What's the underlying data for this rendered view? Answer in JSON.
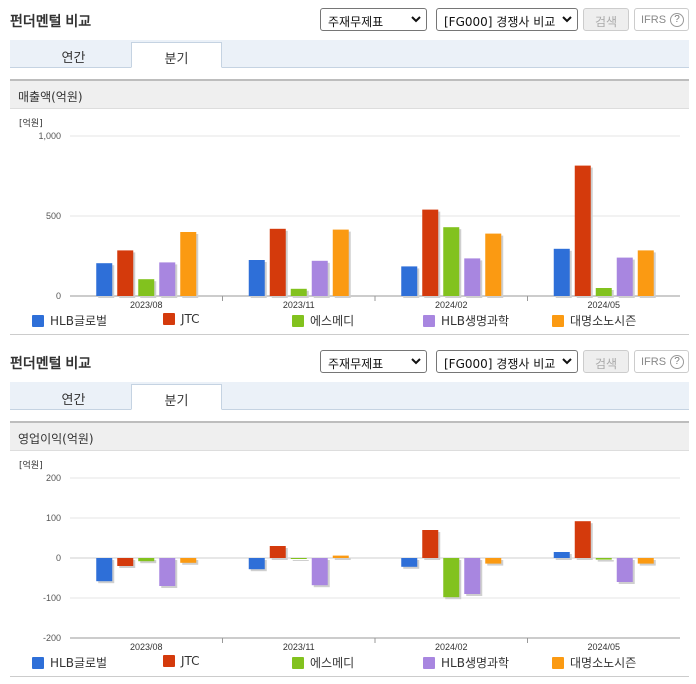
{
  "panels": [
    {
      "title": "펀더멘털 비교",
      "select_statement": "주재무제표",
      "select_peer": "[FG000] 경쟁사 비교",
      "search_label": "검색",
      "ifrs_label": "IFRS",
      "ifrs_help": "?",
      "tabs": [
        {
          "label": "연간",
          "active": false
        },
        {
          "label": "분기",
          "active": true
        }
      ],
      "section_label": "매출액(억원)",
      "chart_data": {
        "type": "bar",
        "unit_label": "[억원]",
        "categories": [
          "2023/08",
          "2023/11",
          "2024/02",
          "2024/05"
        ],
        "ylim": [
          0,
          1000
        ],
        "yticks": [
          0,
          500,
          1000
        ],
        "ytick_labels": [
          "0",
          "500",
          "1,000"
        ],
        "grid": true,
        "legend_position": "bottom",
        "series": [
          {
            "name": "HLB글로벌",
            "color": "#2e6fd8",
            "values": [
              205,
              225,
              185,
              295
            ]
          },
          {
            "name": "JTC",
            "color": "#d43a0c",
            "values": [
              285,
              420,
              540,
              815
            ]
          },
          {
            "name": "에스메디",
            "color": "#82c21e",
            "values": [
              105,
              45,
              430,
              50
            ]
          },
          {
            "name": "HLB생명과학",
            "color": "#a886e0",
            "values": [
              210,
              220,
              235,
              240
            ]
          },
          {
            "name": "대명소노시즌",
            "color": "#fb9a12",
            "values": [
              400,
              415,
              390,
              285
            ]
          }
        ]
      }
    },
    {
      "title": "펀더멘털 비교",
      "select_statement": "주재무제표",
      "select_peer": "[FG000] 경쟁사 비교",
      "search_label": "검색",
      "ifrs_label": "IFRS",
      "ifrs_help": "?",
      "tabs": [
        {
          "label": "연간",
          "active": false
        },
        {
          "label": "분기",
          "active": true
        }
      ],
      "section_label": "영업이익(억원)",
      "chart_data": {
        "type": "bar",
        "unit_label": "[억원]",
        "categories": [
          "2023/08",
          "2023/11",
          "2024/02",
          "2024/05"
        ],
        "ylim": [
          -200,
          200
        ],
        "yticks": [
          -200,
          -100,
          0,
          100,
          200
        ],
        "ytick_labels": [
          "-200",
          "-100",
          "0",
          "100",
          "200"
        ],
        "grid": true,
        "legend_position": "bottom",
        "series": [
          {
            "name": "HLB글로벌",
            "color": "#2e6fd8",
            "values": [
              -58,
              -28,
              -22,
              15
            ]
          },
          {
            "name": "JTC",
            "color": "#d43a0c",
            "values": [
              -20,
              30,
              70,
              92
            ]
          },
          {
            "name": "에스메디",
            "color": "#82c21e",
            "values": [
              -8,
              0,
              -98,
              -4
            ]
          },
          {
            "name": "HLB생명과학",
            "color": "#a886e0",
            "values": [
              -70,
              -68,
              -90,
              -60
            ]
          },
          {
            "name": "대명소노시즌",
            "color": "#fb9a12",
            "values": [
              -12,
              6,
              -14,
              -14
            ]
          }
        ]
      }
    }
  ]
}
